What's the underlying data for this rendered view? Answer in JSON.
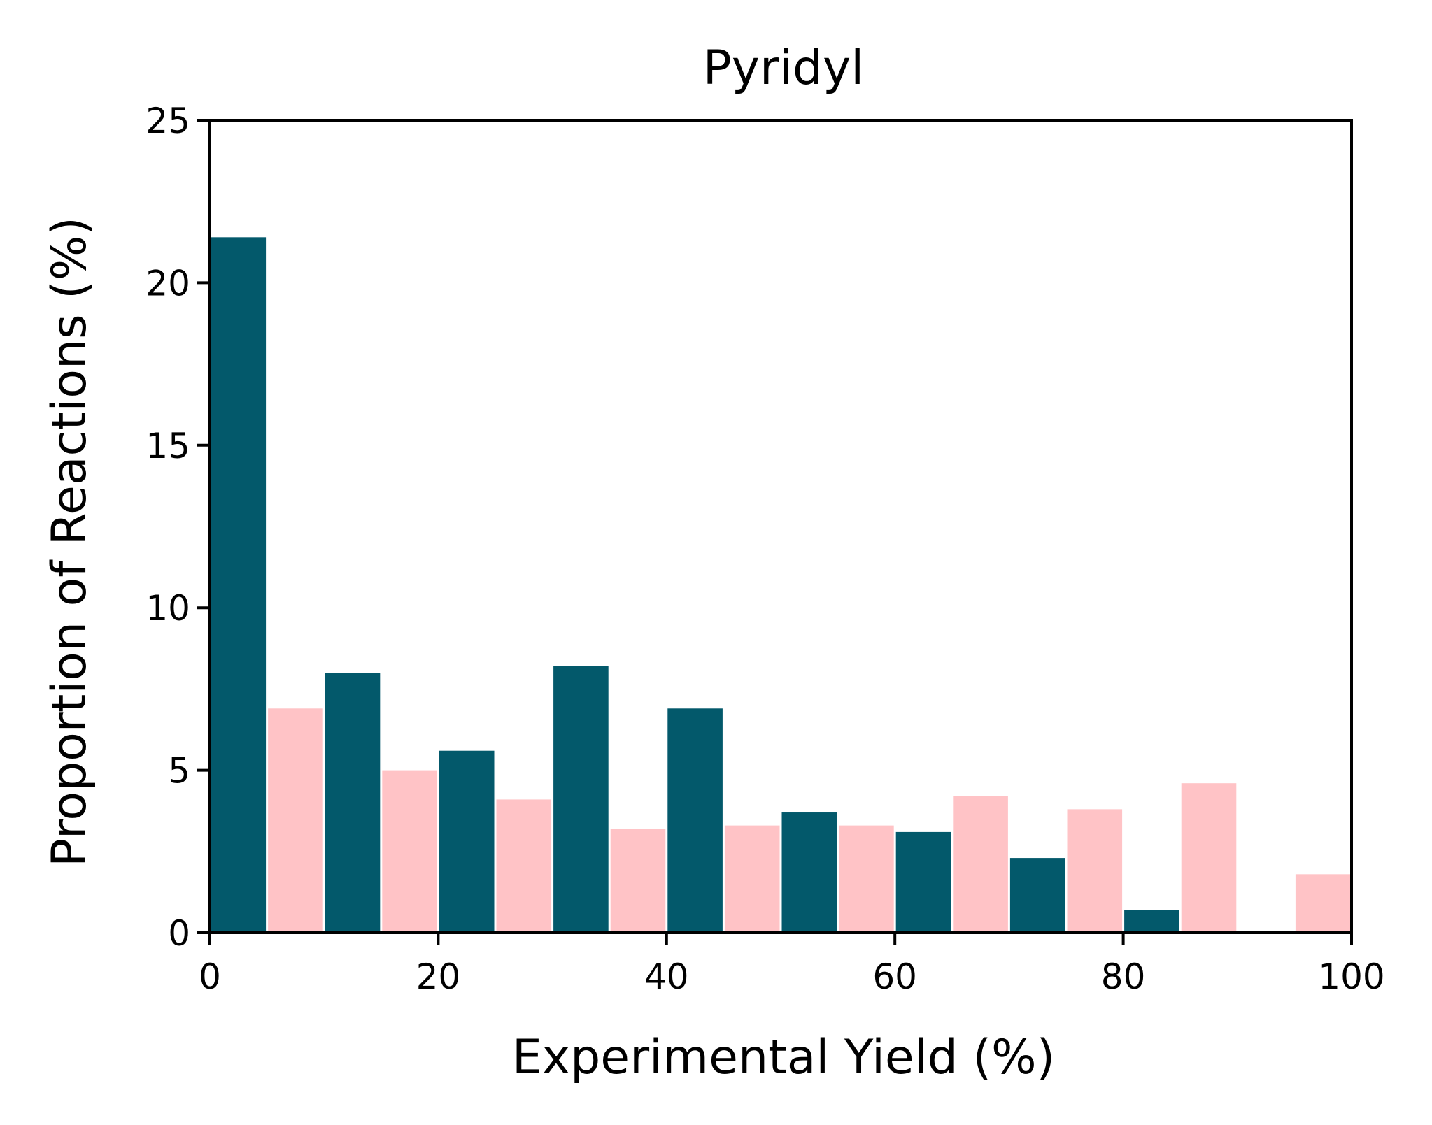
{
  "chart_data": {
    "type": "bar",
    "title": "Pyridyl",
    "xlabel": "Experimental Yield (%)",
    "ylabel": "Proportion of Reactions (%)",
    "xlim": [
      0,
      100
    ],
    "ylim": [
      0,
      25
    ],
    "xticks": [
      "0",
      "20",
      "40",
      "60",
      "80",
      "100"
    ],
    "yticks": [
      "0",
      "5",
      "10",
      "15",
      "20",
      "25"
    ],
    "grid": false,
    "legend": "none",
    "bin_edges": [
      0,
      10,
      20,
      30,
      40,
      50,
      60,
      70,
      80,
      90,
      100
    ],
    "series": [
      {
        "color": "#03596b",
        "values": [
          21.4,
          8.0,
          5.6,
          8.2,
          6.9,
          3.7,
          3.1,
          2.3,
          0.7,
          0.0
        ]
      },
      {
        "color": "#ffc3c6",
        "values": [
          6.9,
          5.0,
          4.1,
          3.2,
          3.3,
          3.3,
          4.2,
          3.8,
          4.6,
          1.8
        ]
      }
    ]
  }
}
